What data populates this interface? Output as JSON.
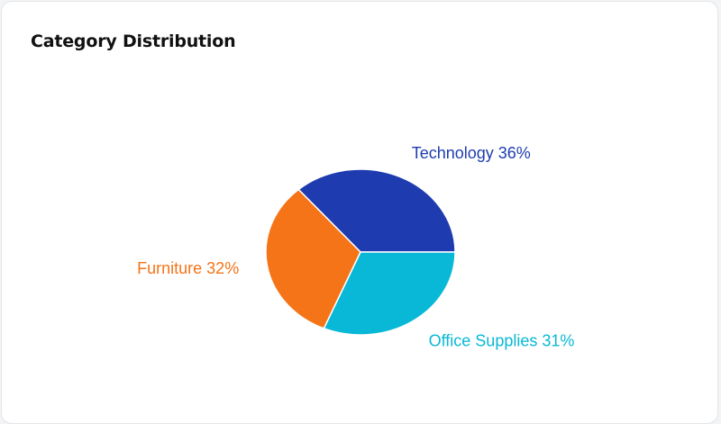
{
  "chart_data": {
    "type": "pie",
    "title": "Category Distribution",
    "categories": [
      "Technology",
      "Furniture",
      "Office Supplies"
    ],
    "values": [
      36,
      32,
      31
    ],
    "value_labels": [
      "36%",
      "32%",
      "31%"
    ],
    "colors": [
      "#1e3caf",
      "#f57417",
      "#08b8d6"
    ]
  }
}
